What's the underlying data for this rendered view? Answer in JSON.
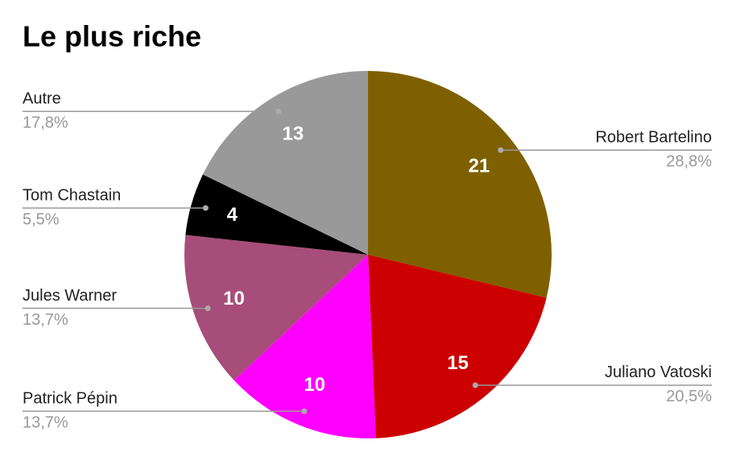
{
  "chart_data": {
    "type": "pie",
    "title": "Le plus riche",
    "categories": [
      "Robert Bartelino",
      "Juliano Vatoski",
      "Patrick Pépin",
      "Jules Warner",
      "Tom Chastain",
      "Autre"
    ],
    "values": [
      21,
      15,
      10,
      10,
      4,
      13
    ],
    "percent_labels": [
      "28,8%",
      "20,5%",
      "13,7%",
      "13,7%",
      "5,5%",
      "17,8%"
    ],
    "colors": [
      "#7f6000",
      "#cc0000",
      "#ff00ff",
      "#a64d79",
      "#000000",
      "#999999"
    ]
  }
}
